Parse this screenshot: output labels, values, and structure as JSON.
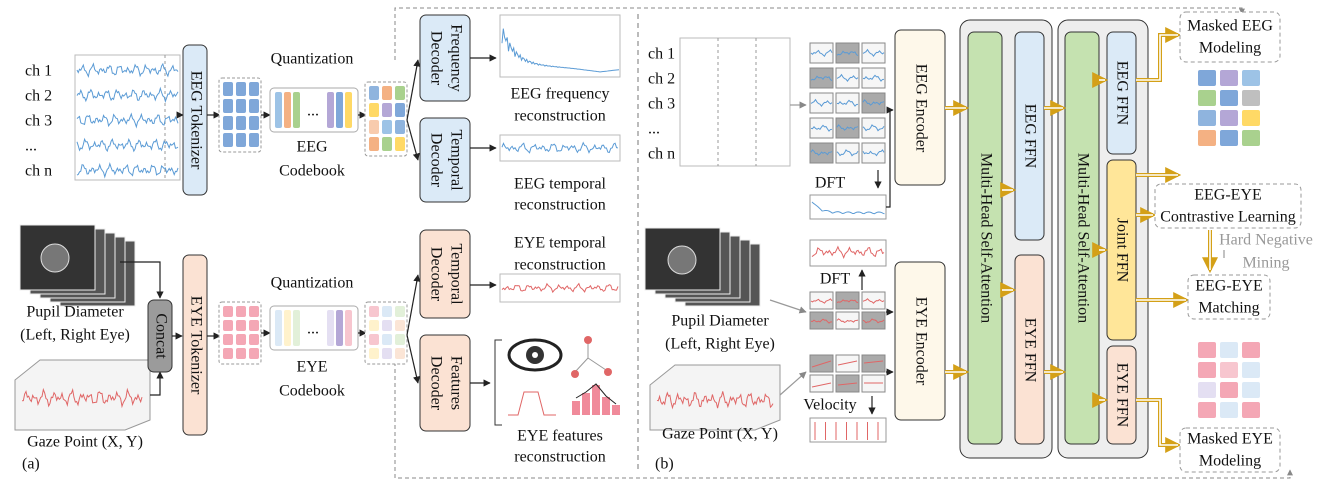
{
  "panel_a": {
    "label": "(a)",
    "eeg_channels": [
      "ch 1",
      "ch 2",
      "ch 3",
      "...",
      "ch n"
    ],
    "eeg_tokenizer": "EEG Tokenizer",
    "eeg_quantization": "Quantization",
    "eeg_codebook_ellipsis": "...",
    "eeg_codebook": [
      "EEG",
      "Codebook"
    ],
    "frequency_decoder": [
      "Frequency",
      "Decoder"
    ],
    "eeg_temporal_decoder": [
      "Temporal",
      "Decoder"
    ],
    "eeg_frequency_reconstruction": [
      "EEG frequency",
      "reconstruction"
    ],
    "eeg_temporal_reconstruction": [
      "EEG temporal",
      "reconstruction"
    ],
    "pupil_diameter": [
      "Pupil Diameter",
      "(Left, Right Eye)"
    ],
    "gaze_point": "Gaze Point (X, Y)",
    "concat": "Concat",
    "eye_tokenizer": "EYE Tokenizer",
    "eye_quantization": "Quantization",
    "eye_codebook_ellipsis": "...",
    "eye_codebook": [
      "EYE",
      "Codebook"
    ],
    "eye_temporal_decoder": [
      "Temporal",
      "Decoder"
    ],
    "features_decoder": [
      "Features",
      "Decoder"
    ],
    "eye_temporal_reconstruction": [
      "EYE temporal",
      "reconstruction"
    ],
    "eye_features_reconstruction": [
      "EYE features",
      "reconstruction"
    ]
  },
  "panel_b": {
    "label": "(b)",
    "eeg_channels": [
      "ch 1",
      "ch 2",
      "ch 3",
      "...",
      "ch n"
    ],
    "eeg_dft": "DFT",
    "eeg_encoder": "EEG Encoder",
    "pupil_diameter": [
      "Pupil Diameter",
      "(Left, Right Eye)"
    ],
    "gaze_point": "Gaze Point (X, Y)",
    "eye_dft": "DFT",
    "velocity": "Velocity",
    "eye_encoder": "EYE Encoder",
    "attention_1": "Multi-Head Self-Attention",
    "eeg_ffn_1": "EEG FFN",
    "eye_ffn_1": "EYE FFN",
    "attention_2": "Multi-Head Self-Attention",
    "eeg_ffn_2": "EEG FFN",
    "joint_ffn": "Joint FFN",
    "eye_ffn_2": "EYE FFN",
    "masked_eeg_modeling": [
      "Masked EEG",
      "Modeling"
    ],
    "contrastive_learning": [
      "EEG-EYE",
      "Contrastive Learning"
    ],
    "hard_negative_mining": [
      "Hard Negative",
      "Mining"
    ],
    "matching": [
      "EEG-EYE",
      "Matching"
    ],
    "masked_eye_modeling": [
      "Masked EYE",
      "Modeling"
    ]
  }
}
